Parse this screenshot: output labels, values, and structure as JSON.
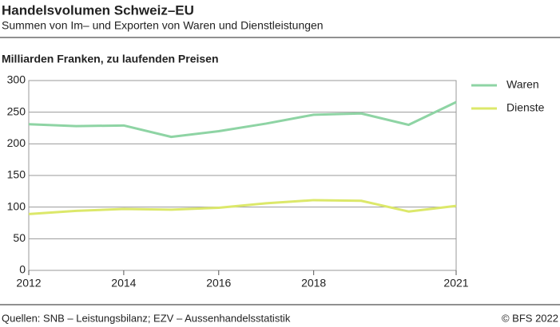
{
  "chart_data": {
    "type": "line",
    "title": "Handelsvolumen Schweiz–EU",
    "subtitle": "Summen von Im– und Exporten von Waren und Dienstleistungen",
    "y_label": "Milliarden Franken, zu laufenden Preisen",
    "x": [
      2012,
      2013,
      2014,
      2015,
      2016,
      2017,
      2018,
      2019,
      2020,
      2021
    ],
    "series": [
      {
        "name": "Waren",
        "color": "#8ed4a4",
        "values": [
          231,
          228,
          229,
          211,
          220,
          232,
          246,
          248,
          230,
          266
        ]
      },
      {
        "name": "Dienste",
        "color": "#dce86a",
        "values": [
          89,
          94,
          97,
          96,
          99,
          106,
          111,
          110,
          93,
          102
        ]
      }
    ],
    "xlim": [
      2012,
      2021
    ],
    "xticks": [
      2012,
      2014,
      2016,
      2018,
      2021
    ],
    "ylim": [
      0,
      300
    ],
    "yticks": [
      0,
      50,
      100,
      150,
      200,
      250,
      300
    ],
    "grid": true,
    "legend": "right",
    "source": "Quellen: SNB – Leistungsbilanz; EZV – Aussenhandelsstatistik",
    "copyright": "© BFS 2022"
  }
}
